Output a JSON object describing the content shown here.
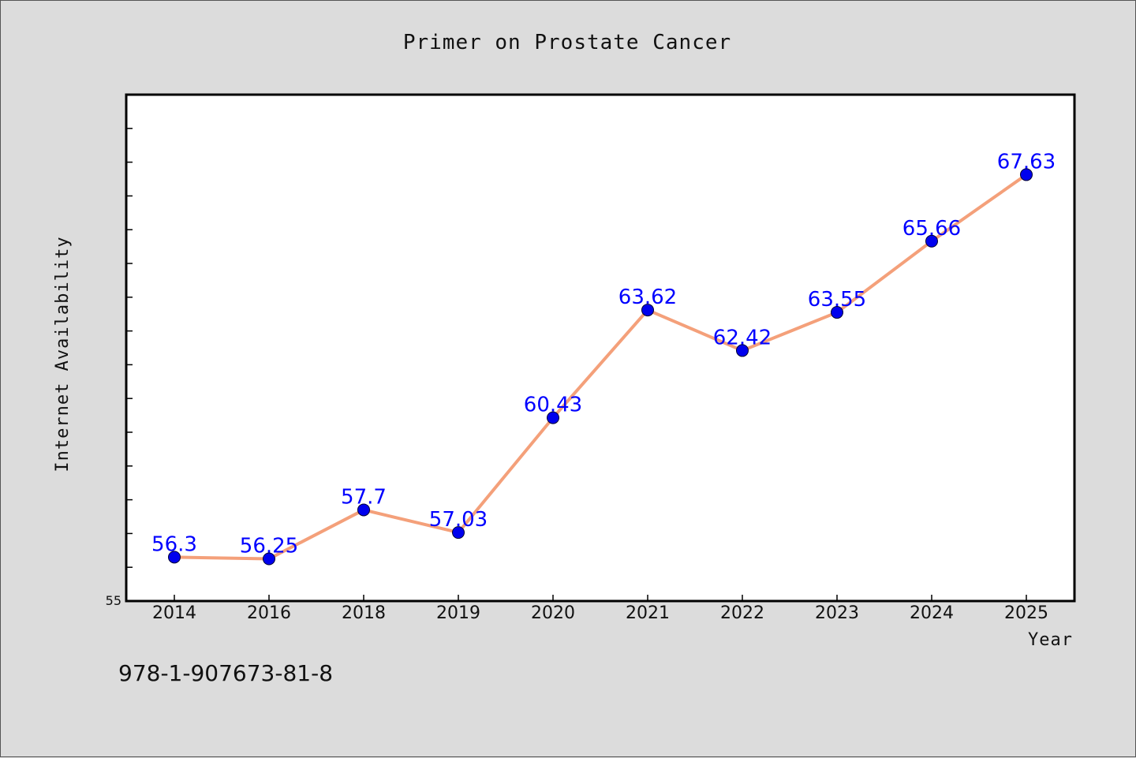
{
  "chart_data": {
    "type": "line",
    "title": "Primer on Prostate Cancer",
    "xlabel": "Year",
    "ylabel": "Internet Availability",
    "categories": [
      "2014",
      "2016",
      "2018",
      "2019",
      "2020",
      "2021",
      "2022",
      "2023",
      "2024",
      "2025"
    ],
    "series": [
      {
        "values": [
          56.3,
          56.25,
          57.7,
          57.03,
          60.43,
          63.62,
          62.42,
          63.55,
          65.66,
          67.63
        ],
        "data_labels": [
          "56.3",
          "56.25",
          "57.7",
          "57.03",
          "60.43",
          "63.62",
          "62.42",
          "63.55",
          "65.66",
          "67.63"
        ],
        "line_color": "#f4a07a",
        "marker_color": "#0000ee",
        "label_color": "#0000ff"
      }
    ],
    "ylim": [
      55,
      70
    ],
    "ytick_min_label": "55",
    "grid": false,
    "legend": "none"
  },
  "footer": {
    "isbn": "978-1-907673-81-8"
  },
  "colors": {
    "background": "#dcdcdc",
    "plot_background": "#ffffff",
    "axis": "#000000"
  }
}
